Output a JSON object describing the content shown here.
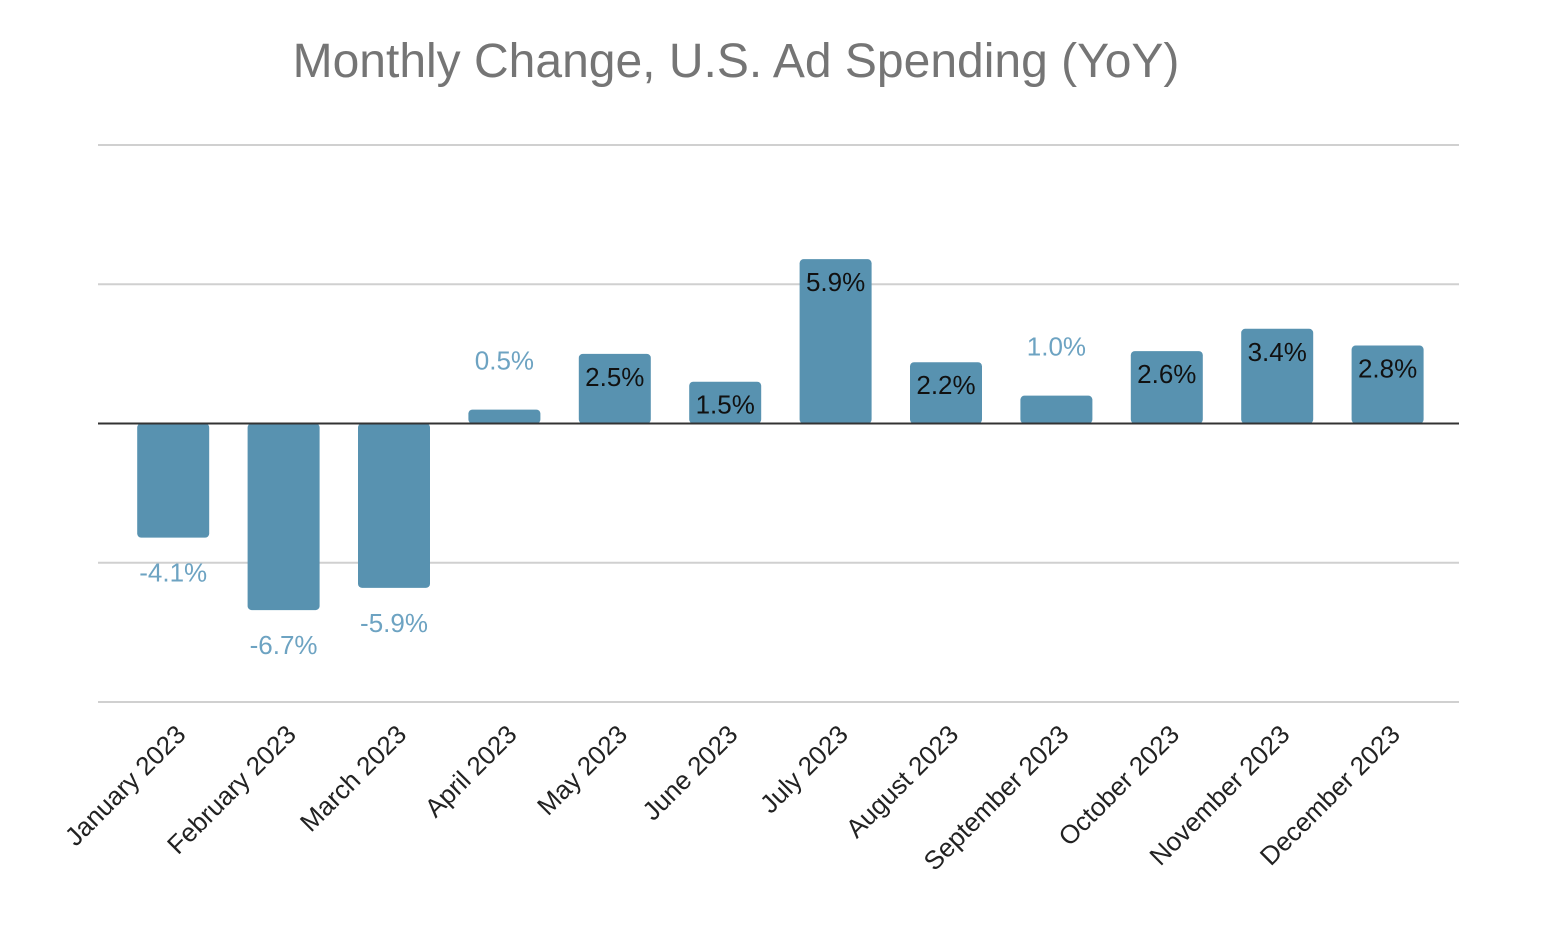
{
  "chart_data": {
    "type": "bar",
    "title": "Monthly Change, U.S. Ad Spending (YoY)",
    "xlabel": "",
    "ylabel": "",
    "categories": [
      "January 2023",
      "February 2023",
      "March 2023",
      "April 2023",
      "May 2023",
      "June 2023",
      "July 2023",
      "August 2023",
      "September 2023",
      "October 2023",
      "November 2023",
      "December 2023"
    ],
    "values": [
      -4.1,
      -6.7,
      -5.9,
      0.5,
      2.5,
      1.5,
      5.9,
      2.2,
      1.0,
      2.6,
      3.4,
      2.8
    ],
    "data_labels": [
      "-4.1%",
      "-6.7%",
      "-5.9%",
      "0.5%",
      "2.5%",
      "1.5%",
      "5.9%",
      "2.2%",
      "1.0%",
      "2.6%",
      "3.4%",
      "2.8%"
    ],
    "ylim": [
      -10,
      10
    ],
    "grid": true,
    "legend": "none",
    "colors": {
      "bar": "#5892b0",
      "label_outside": "#6da3c2",
      "label_inside": "#111111",
      "gridline": "#d0d0d0",
      "zeroline": "#333333",
      "title": "#757575"
    }
  }
}
